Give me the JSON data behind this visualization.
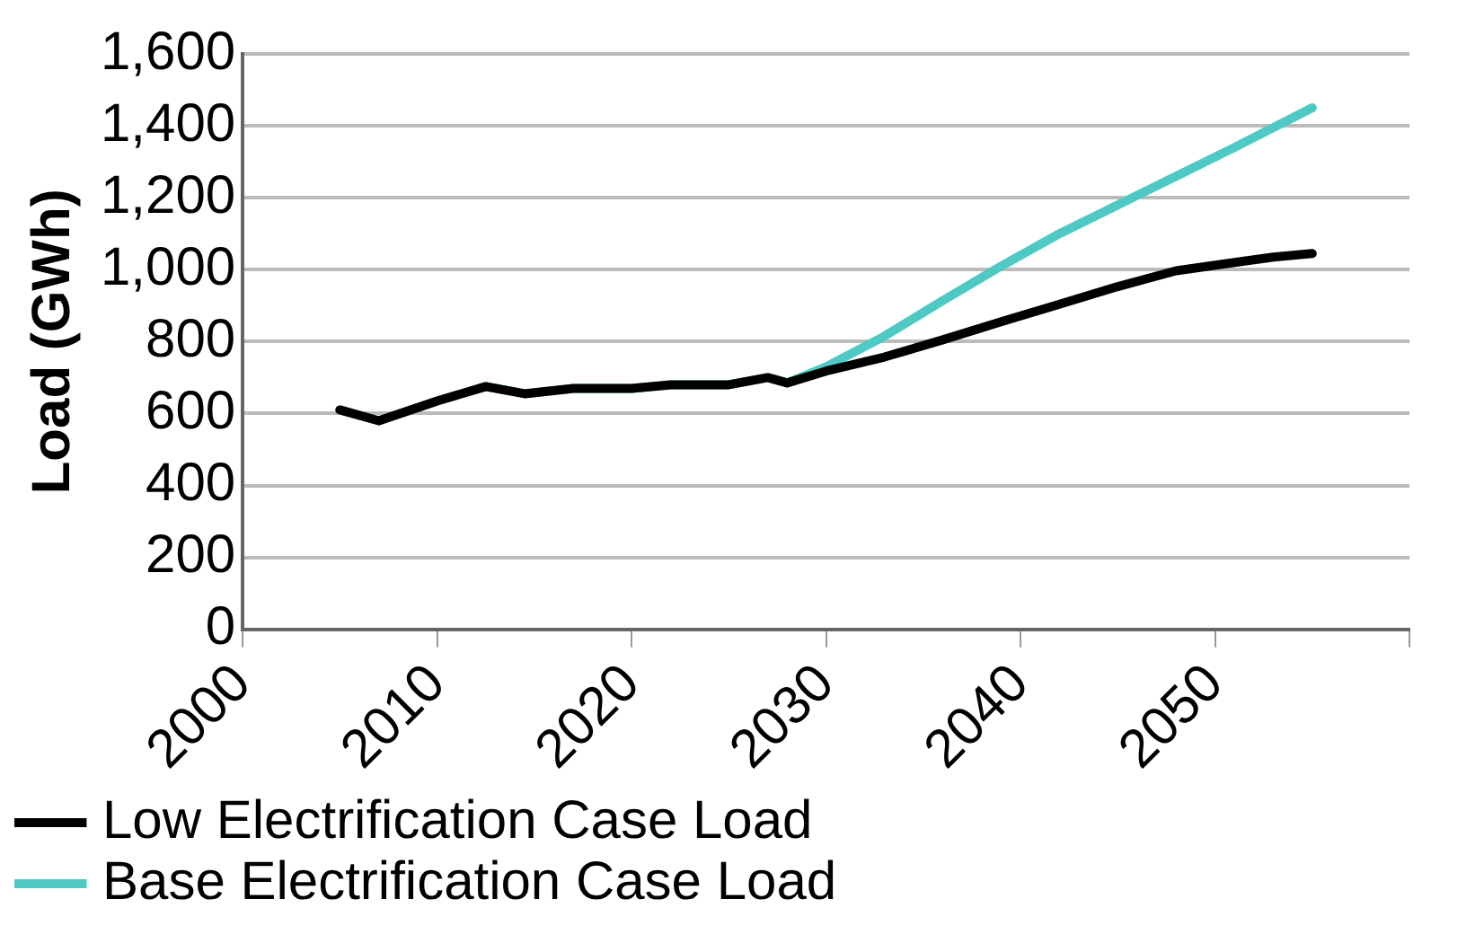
{
  "chart_data": {
    "type": "line",
    "ylabel": "Load (GWh)",
    "xlim": [
      2000,
      2060
    ],
    "xticks": [
      2000,
      2010,
      2020,
      2030,
      2040,
      2050,
      {
        "value": 2060,
        "label": null
      }
    ],
    "ylim": [
      0,
      1600
    ],
    "yticks": [
      0,
      200,
      400,
      600,
      800,
      {
        "value": 1000,
        "label": "1,000"
      },
      {
        "value": 1200,
        "label": "1,200"
      },
      {
        "value": 1400,
        "label": "1,400"
      },
      {
        "value": 1600,
        "label": "1,600"
      }
    ],
    "grid": "y",
    "legend": "bottom",
    "marker": "none",
    "line_style": "solid",
    "series": [
      {
        "name": "Low Electrification Case Load",
        "color": "#000000",
        "x": [
          2005,
          2007,
          2010,
          2012.5,
          2014.5,
          2017,
          2020,
          2022,
          2025,
          2027,
          2028,
          2030,
          2033,
          2036,
          2039,
          2042,
          2045,
          2048,
          2051,
          2053,
          2055
        ],
        "values": [
          610,
          580,
          635,
          675,
          655,
          670,
          670,
          680,
          680,
          700,
          685,
          718,
          757,
          805,
          855,
          904,
          953,
          997,
          1020,
          1035,
          1045
        ]
      },
      {
        "name": "Base Electrification Case Load",
        "color": "#4ec9c4",
        "x": [
          2005,
          2007,
          2010,
          2012.5,
          2014.5,
          2017,
          2020,
          2022,
          2025,
          2027,
          2028,
          2030,
          2033,
          2036,
          2039,
          2042,
          2045,
          2048,
          2051,
          2055
        ],
        "values": [
          610,
          580,
          635,
          675,
          655,
          670,
          670,
          680,
          680,
          700,
          685,
          730,
          815,
          914,
          1010,
          1100,
          1180,
          1260,
          1340,
          1450
        ]
      }
    ]
  }
}
